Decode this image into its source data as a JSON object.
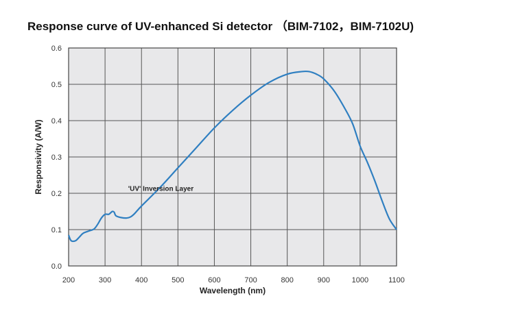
{
  "chart_data": {
    "type": "line",
    "title": "Response curve of UV-enhanced Si detector （BIM-7102，BIM-7102U)",
    "xlabel": "Wavelength (nm)",
    "ylabel": "Responsivity (A/W)",
    "xlim": [
      200,
      1100
    ],
    "ylim": [
      0.0,
      0.6
    ],
    "xticks": [
      200,
      300,
      400,
      500,
      600,
      700,
      800,
      900,
      1000,
      1100
    ],
    "xtick_labels": [
      "200",
      "300",
      "400",
      "500",
      "600",
      "700",
      "800",
      "900",
      "1000",
      "1100"
    ],
    "yticks": [
      0.0,
      0.1,
      0.2,
      0.3,
      0.4,
      0.5,
      0.6
    ],
    "ytick_labels": [
      "0.0",
      "0.1",
      "0.2",
      "0.3",
      "0.4",
      "0.5",
      "0.6"
    ],
    "grid": true,
    "background": "#e8e8ea",
    "line_color": "#2f7fc1",
    "annotation": {
      "text": "'UV' Inversion Layer",
      "x": 455,
      "y": 0.21
    },
    "series": [
      {
        "x": [
          200,
          205,
          210,
          220,
          230,
          240,
          255,
          270,
          280,
          290,
          300,
          310,
          315,
          320,
          325,
          330,
          345,
          360,
          370,
          380,
          400,
          450,
          500,
          550,
          600,
          650,
          700,
          750,
          800,
          840,
          860,
          880,
          900,
          930,
          960,
          980,
          1000,
          1020,
          1040,
          1060,
          1080,
          1100
        ],
        "y": [
          0.085,
          0.072,
          0.068,
          0.07,
          0.08,
          0.09,
          0.096,
          0.102,
          0.115,
          0.132,
          0.142,
          0.142,
          0.146,
          0.15,
          0.148,
          0.138,
          0.133,
          0.132,
          0.135,
          0.143,
          0.165,
          0.215,
          0.27,
          0.325,
          0.38,
          0.428,
          0.47,
          0.505,
          0.528,
          0.535,
          0.535,
          0.528,
          0.515,
          0.48,
          0.43,
          0.39,
          0.33,
          0.285,
          0.235,
          0.18,
          0.13,
          0.1
        ]
      }
    ]
  }
}
